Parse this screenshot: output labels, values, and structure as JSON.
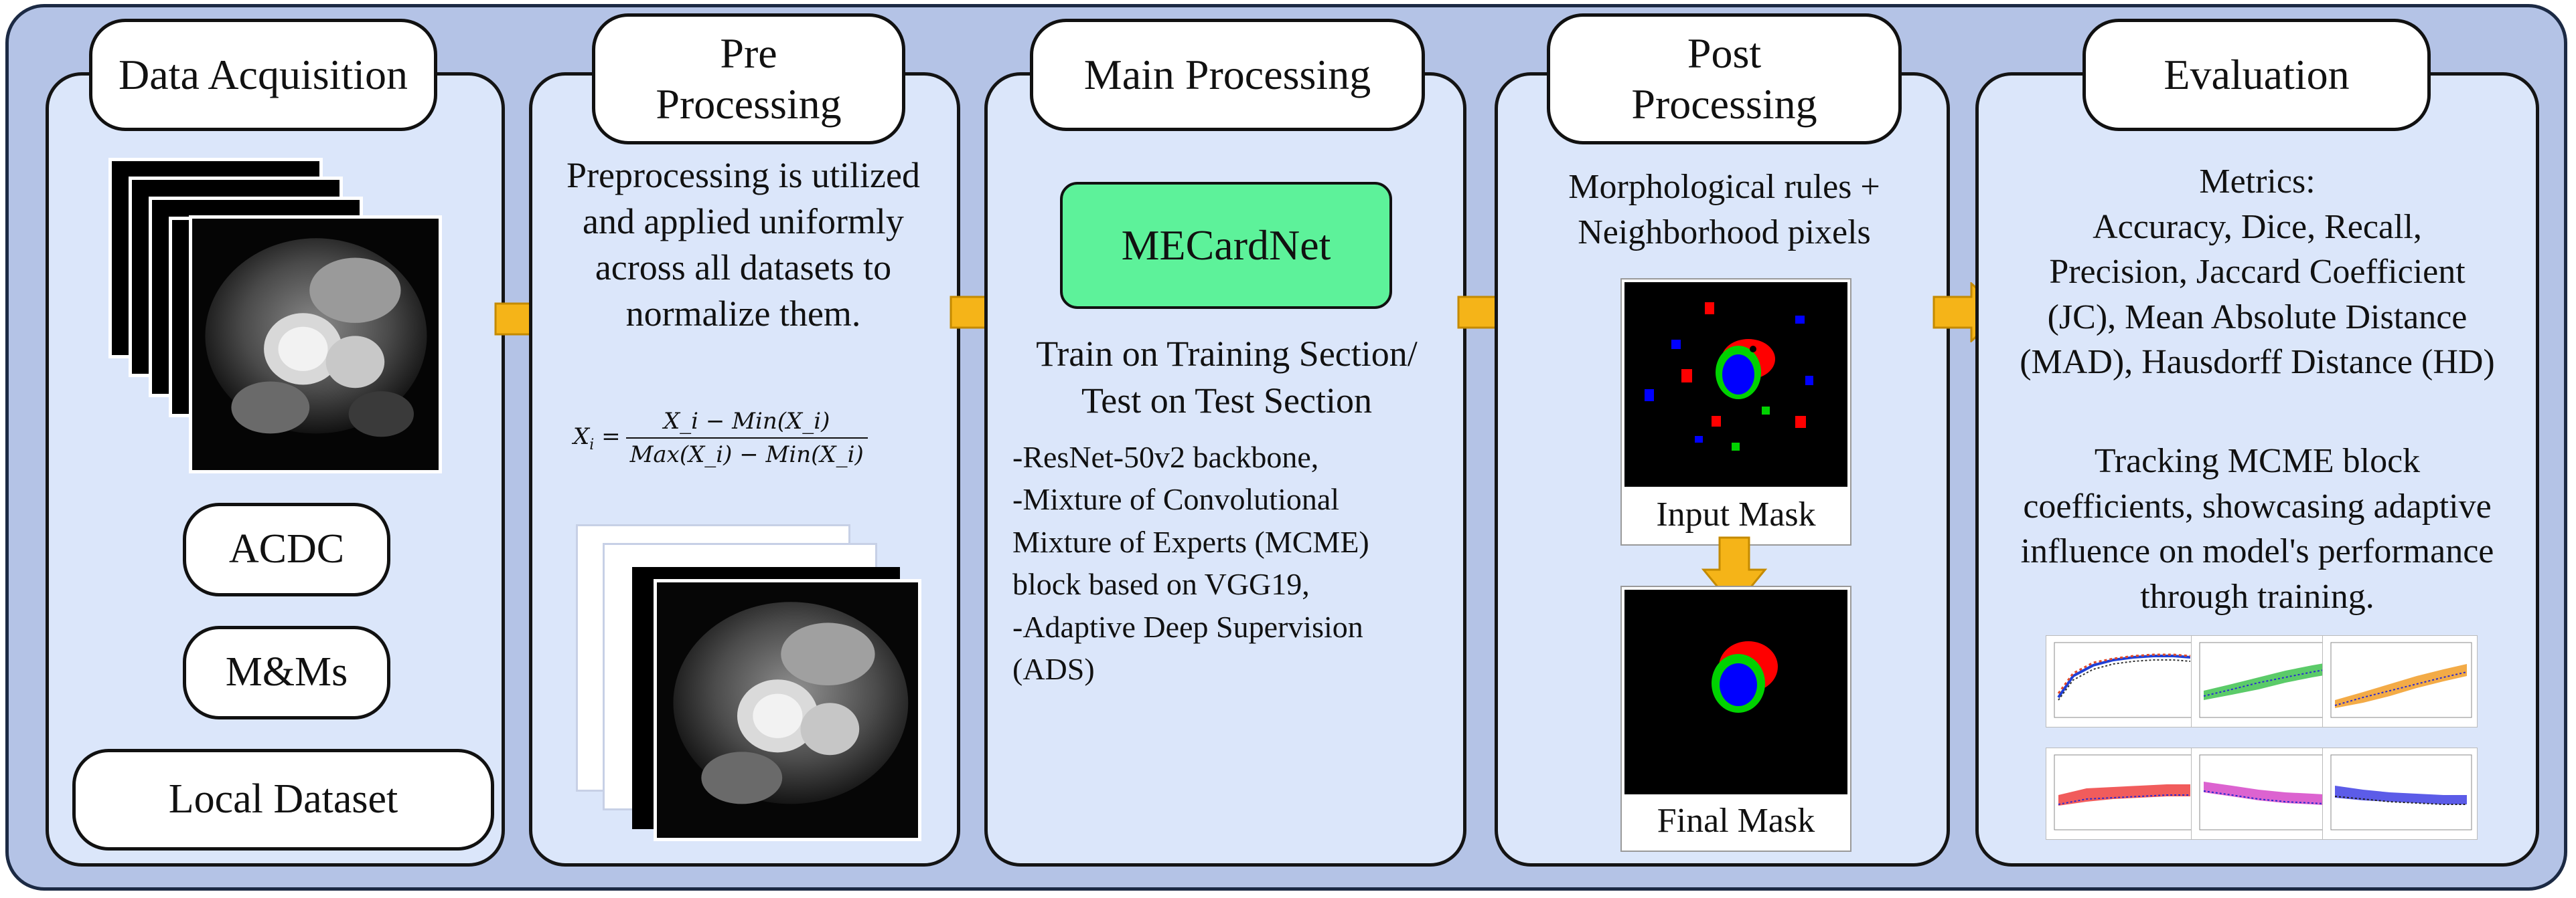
{
  "arrow_color": "#f5b418",
  "stages": [
    {
      "title": "Data Acquisition"
    },
    {
      "title_lines": [
        "Pre",
        "Processing"
      ]
    },
    {
      "title": "Main Processing"
    },
    {
      "title_lines": [
        "Post",
        "Processing"
      ]
    },
    {
      "title": "Evaluation"
    }
  ],
  "data_acquisition": {
    "datasets": [
      "ACDC",
      "M&Ms",
      "Local Dataset"
    ]
  },
  "pre_processing": {
    "description": "Preprocessing is utilized and applied uniformly across all datasets to normalize them.",
    "formula_lhs": "X",
    "formula_sub": "i",
    "formula_numerator": "X_i − Min(X_i)",
    "formula_denominator": "Max(X_i) − Min(X_i)"
  },
  "main_processing": {
    "model_name": "MECardNet",
    "model_color": "#5df29a",
    "train_test_lines": [
      "Train on Training Section/",
      "Test on Test Section"
    ],
    "details": [
      "-ResNet-50v2 backbone,",
      "-Mixture of Convolutional",
      "Mixture of Experts (MCME)",
      "block  based on VGG19,",
      "-Adaptive Deep Supervision",
      "(ADS)"
    ]
  },
  "post_processing": {
    "rule_lines": [
      "Morphological rules +",
      "Neighborhood pixels"
    ],
    "input_label": "Input Mask",
    "output_label": "Final Mask"
  },
  "evaluation": {
    "metric_lines": [
      "Metrics:",
      "Accuracy,  Dice,  Recall,",
      "Precision, Jaccard Coefficient",
      "(JC), Mean Absolute Distance",
      "(MAD), Hausdorff Distance (HD)"
    ],
    "tracking_lines": [
      "Tracking MCME block",
      "coefficients, showcasing adaptive",
      "influence on model's performance",
      "through training."
    ]
  }
}
